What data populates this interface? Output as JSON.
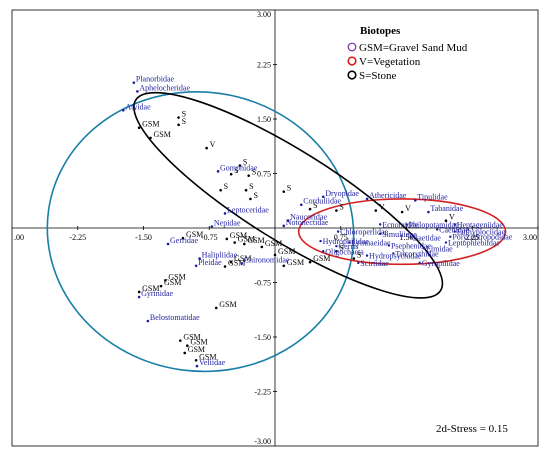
{
  "chart_data": {
    "type": "scatter",
    "xlim": [
      -3.0,
      3.0
    ],
    "ylim": [
      -3.0,
      3.0
    ],
    "x_ticks": [
      -2.25,
      -1.5,
      -0.75,
      0.75,
      1.5,
      2.25,
      3.0
    ],
    "x_tick_labels": [
      "-2.25",
      "-1.50",
      "-0.75",
      "0.75",
      "1.50",
      "2.25",
      "3.00"
    ],
    "x_edge_label": "3.00",
    "y_ticks": [
      2.25,
      1.5,
      0.75,
      -0.75,
      -1.5,
      -2.25
    ],
    "y_tick_labels": [
      "2.25",
      "1.50",
      "0.75",
      "-0.75",
      "-1.50",
      "-2.25"
    ],
    "y_top_label": "3.00",
    "y_bottom_label": "-3.00",
    "stress_text": "2d-Stress = 0.15",
    "legend": {
      "title": "Biotopes",
      "position": "top-right",
      "entries": [
        {
          "label": "GSM=Gravel Sand Mud",
          "color": "#7b2fa6"
        },
        {
          "label": "V=Vegetation",
          "color": "#d42020"
        },
        {
          "label": "S=Stone",
          "color": "#000000"
        }
      ]
    },
    "ellipses": [
      {
        "group": "GSM",
        "color": "#1a7fa8",
        "cx": -0.85,
        "cy": -0.05,
        "rx": 1.75,
        "ry": 1.92,
        "angle": -8
      },
      {
        "group": "V",
        "color": "#d42020",
        "cx": 1.45,
        "cy": -0.05,
        "rx": 1.18,
        "ry": 0.45,
        "angle": 0
      },
      {
        "group": "S",
        "color": "#000000",
        "cx": 0.15,
        "cy": 0.45,
        "rx": 2.05,
        "ry": 0.62,
        "angle": -32
      }
    ],
    "families": [
      {
        "name": "Planorbidae",
        "x": -1.61,
        "y": 2.0
      },
      {
        "name": "Aphelocheridae",
        "x": -1.57,
        "y": 1.88
      },
      {
        "name": "Atyidae",
        "x": -1.73,
        "y": 1.62
      },
      {
        "name": "Gomphidae",
        "x": -0.65,
        "y": 0.78
      },
      {
        "name": "Dryopidae",
        "x": 0.55,
        "y": 0.43
      },
      {
        "name": "Athericidae",
        "x": 1.05,
        "y": 0.4
      },
      {
        "name": "Tipulidae",
        "x": 1.6,
        "y": 0.38
      },
      {
        "name": "Corduliidae",
        "x": 0.3,
        "y": 0.32
      },
      {
        "name": "Tabanidae",
        "x": 1.75,
        "y": 0.22
      },
      {
        "name": "Leptoceridae",
        "x": -0.57,
        "y": 0.2
      },
      {
        "name": "Naucoridae",
        "x": 0.15,
        "y": 0.1
      },
      {
        "name": "Notonectidae",
        "x": 0.1,
        "y": 0.03
      },
      {
        "name": "Nepidae",
        "x": -0.72,
        "y": 0.02
      },
      {
        "name": "Gerridae",
        "x": -1.22,
        "y": -0.22
      },
      {
        "name": "Halipliidae",
        "x": -0.86,
        "y": -0.42
      },
      {
        "name": "Pleidae",
        "x": -0.9,
        "y": -0.52
      },
      {
        "name": "Chironomidae",
        "x": -0.38,
        "y": -0.49
      },
      {
        "name": "Gyrinidae",
        "x": -1.55,
        "y": -0.95
      },
      {
        "name": "Belostomatidae",
        "x": -1.45,
        "y": -1.28
      },
      {
        "name": "Veliidae",
        "x": -0.89,
        "y": -1.9
      }
    ],
    "samples": [
      {
        "label": "S",
        "x": -1.1,
        "y": 1.52
      },
      {
        "label": "S",
        "x": -1.1,
        "y": 1.42
      },
      {
        "label": "GSM",
        "x": -1.55,
        "y": 1.38
      },
      {
        "label": "GSM",
        "x": -1.42,
        "y": 1.24
      },
      {
        "label": "V",
        "x": -0.78,
        "y": 1.1
      },
      {
        "label": "S",
        "x": -0.4,
        "y": 0.86
      },
      {
        "label": "S",
        "x": -0.5,
        "y": 0.74
      },
      {
        "label": "S",
        "x": -0.3,
        "y": 0.72
      },
      {
        "label": "S",
        "x": -0.62,
        "y": 0.52
      },
      {
        "label": "S",
        "x": -0.33,
        "y": 0.52
      },
      {
        "label": "S",
        "x": -0.28,
        "y": 0.4
      },
      {
        "label": "S",
        "x": 0.1,
        "y": 0.5
      },
      {
        "label": "S",
        "x": 0.4,
        "y": 0.26
      },
      {
        "label": "S",
        "x": 0.7,
        "y": 0.24
      },
      {
        "label": "V",
        "x": 1.15,
        "y": 0.24
      },
      {
        "label": "V",
        "x": 1.45,
        "y": 0.22
      },
      {
        "label": "V",
        "x": 1.95,
        "y": 0.1
      },
      {
        "label": "GSM",
        "x": -0.55,
        "y": -0.15
      },
      {
        "label": "GSM",
        "x": -1.05,
        "y": -0.14
      },
      {
        "label": "GSM",
        "x": -0.46,
        "y": -0.2
      },
      {
        "label": "GSM",
        "x": -0.35,
        "y": -0.22
      },
      {
        "label": "GSM",
        "x": -0.15,
        "y": -0.26
      },
      {
        "label": "GSM",
        "x": 0.0,
        "y": -0.37
      },
      {
        "label": "GSM",
        "x": -0.5,
        "y": -0.47
      },
      {
        "label": "GSM",
        "x": 0.1,
        "y": -0.52
      },
      {
        "label": "GSM",
        "x": -0.57,
        "y": -0.53
      },
      {
        "label": "GSM",
        "x": 0.4,
        "y": -0.47
      },
      {
        "label": "S",
        "x": 0.7,
        "y": -0.32
      },
      {
        "label": "S",
        "x": 0.9,
        "y": -0.42
      },
      {
        "label": "GSM",
        "x": -1.25,
        "y": -0.72
      },
      {
        "label": "GSM",
        "x": -1.3,
        "y": -0.8
      },
      {
        "label": "GSM",
        "x": -1.55,
        "y": -0.88
      },
      {
        "label": "GSM",
        "x": -0.67,
        "y": -1.1
      },
      {
        "label": "GSM",
        "x": -1.08,
        "y": -1.55
      },
      {
        "label": "GSM",
        "x": -1.0,
        "y": -1.62
      },
      {
        "label": "GSM",
        "x": -1.03,
        "y": -1.72
      },
      {
        "label": "GSM",
        "x": -0.9,
        "y": -1.82
      }
    ],
    "cluster_labels": [
      {
        "name": "Oligochaeta",
        "x": 0.55,
        "y": -0.32
      },
      {
        "name": "Hydrophilidae",
        "x": 0.52,
        "y": -0.18
      },
      {
        "name": "Chloroperlidae",
        "x": 0.72,
        "y": -0.05
      },
      {
        "name": "Scirtidae",
        "x": 0.95,
        "y": -0.48
      },
      {
        "name": "Hydropsychidae",
        "x": 1.05,
        "y": -0.38
      },
      {
        "name": "Psephenidae",
        "x": 1.3,
        "y": -0.24
      },
      {
        "name": "Baetidae",
        "x": 1.55,
        "y": -0.13
      },
      {
        "name": "Caenidae",
        "x": 1.85,
        "y": -0.02
      },
      {
        "name": "Heptageniidae",
        "x": 2.05,
        "y": 0.05
      },
      {
        "name": "Elmidae",
        "x": 1.7,
        "y": -0.28
      },
      {
        "name": "Leptophlebiidae",
        "x": 1.95,
        "y": -0.2
      },
      {
        "name": "Simuliidae",
        "x": 1.2,
        "y": -0.08
      },
      {
        "name": "Tricorythidae",
        "x": 1.35,
        "y": -0.35
      },
      {
        "name": "Euthyplociidae",
        "x": 2.05,
        "y": -0.05
      },
      {
        "name": "Ecnomidae",
        "x": 1.2,
        "y": 0.05
      },
      {
        "name": "Philopotamidae",
        "x": 1.5,
        "y": 0.05
      },
      {
        "name": "Lymnaeidae",
        "x": 0.85,
        "y": -0.2
      },
      {
        "name": "Polycentropodidae",
        "x": 2.0,
        "y": -0.12
      },
      {
        "name": "Gyropilidae",
        "x": 1.65,
        "y": -0.48
      },
      {
        "name": "Gerris",
        "x": 0.7,
        "y": -0.25
      }
    ],
    "grid": false
  }
}
